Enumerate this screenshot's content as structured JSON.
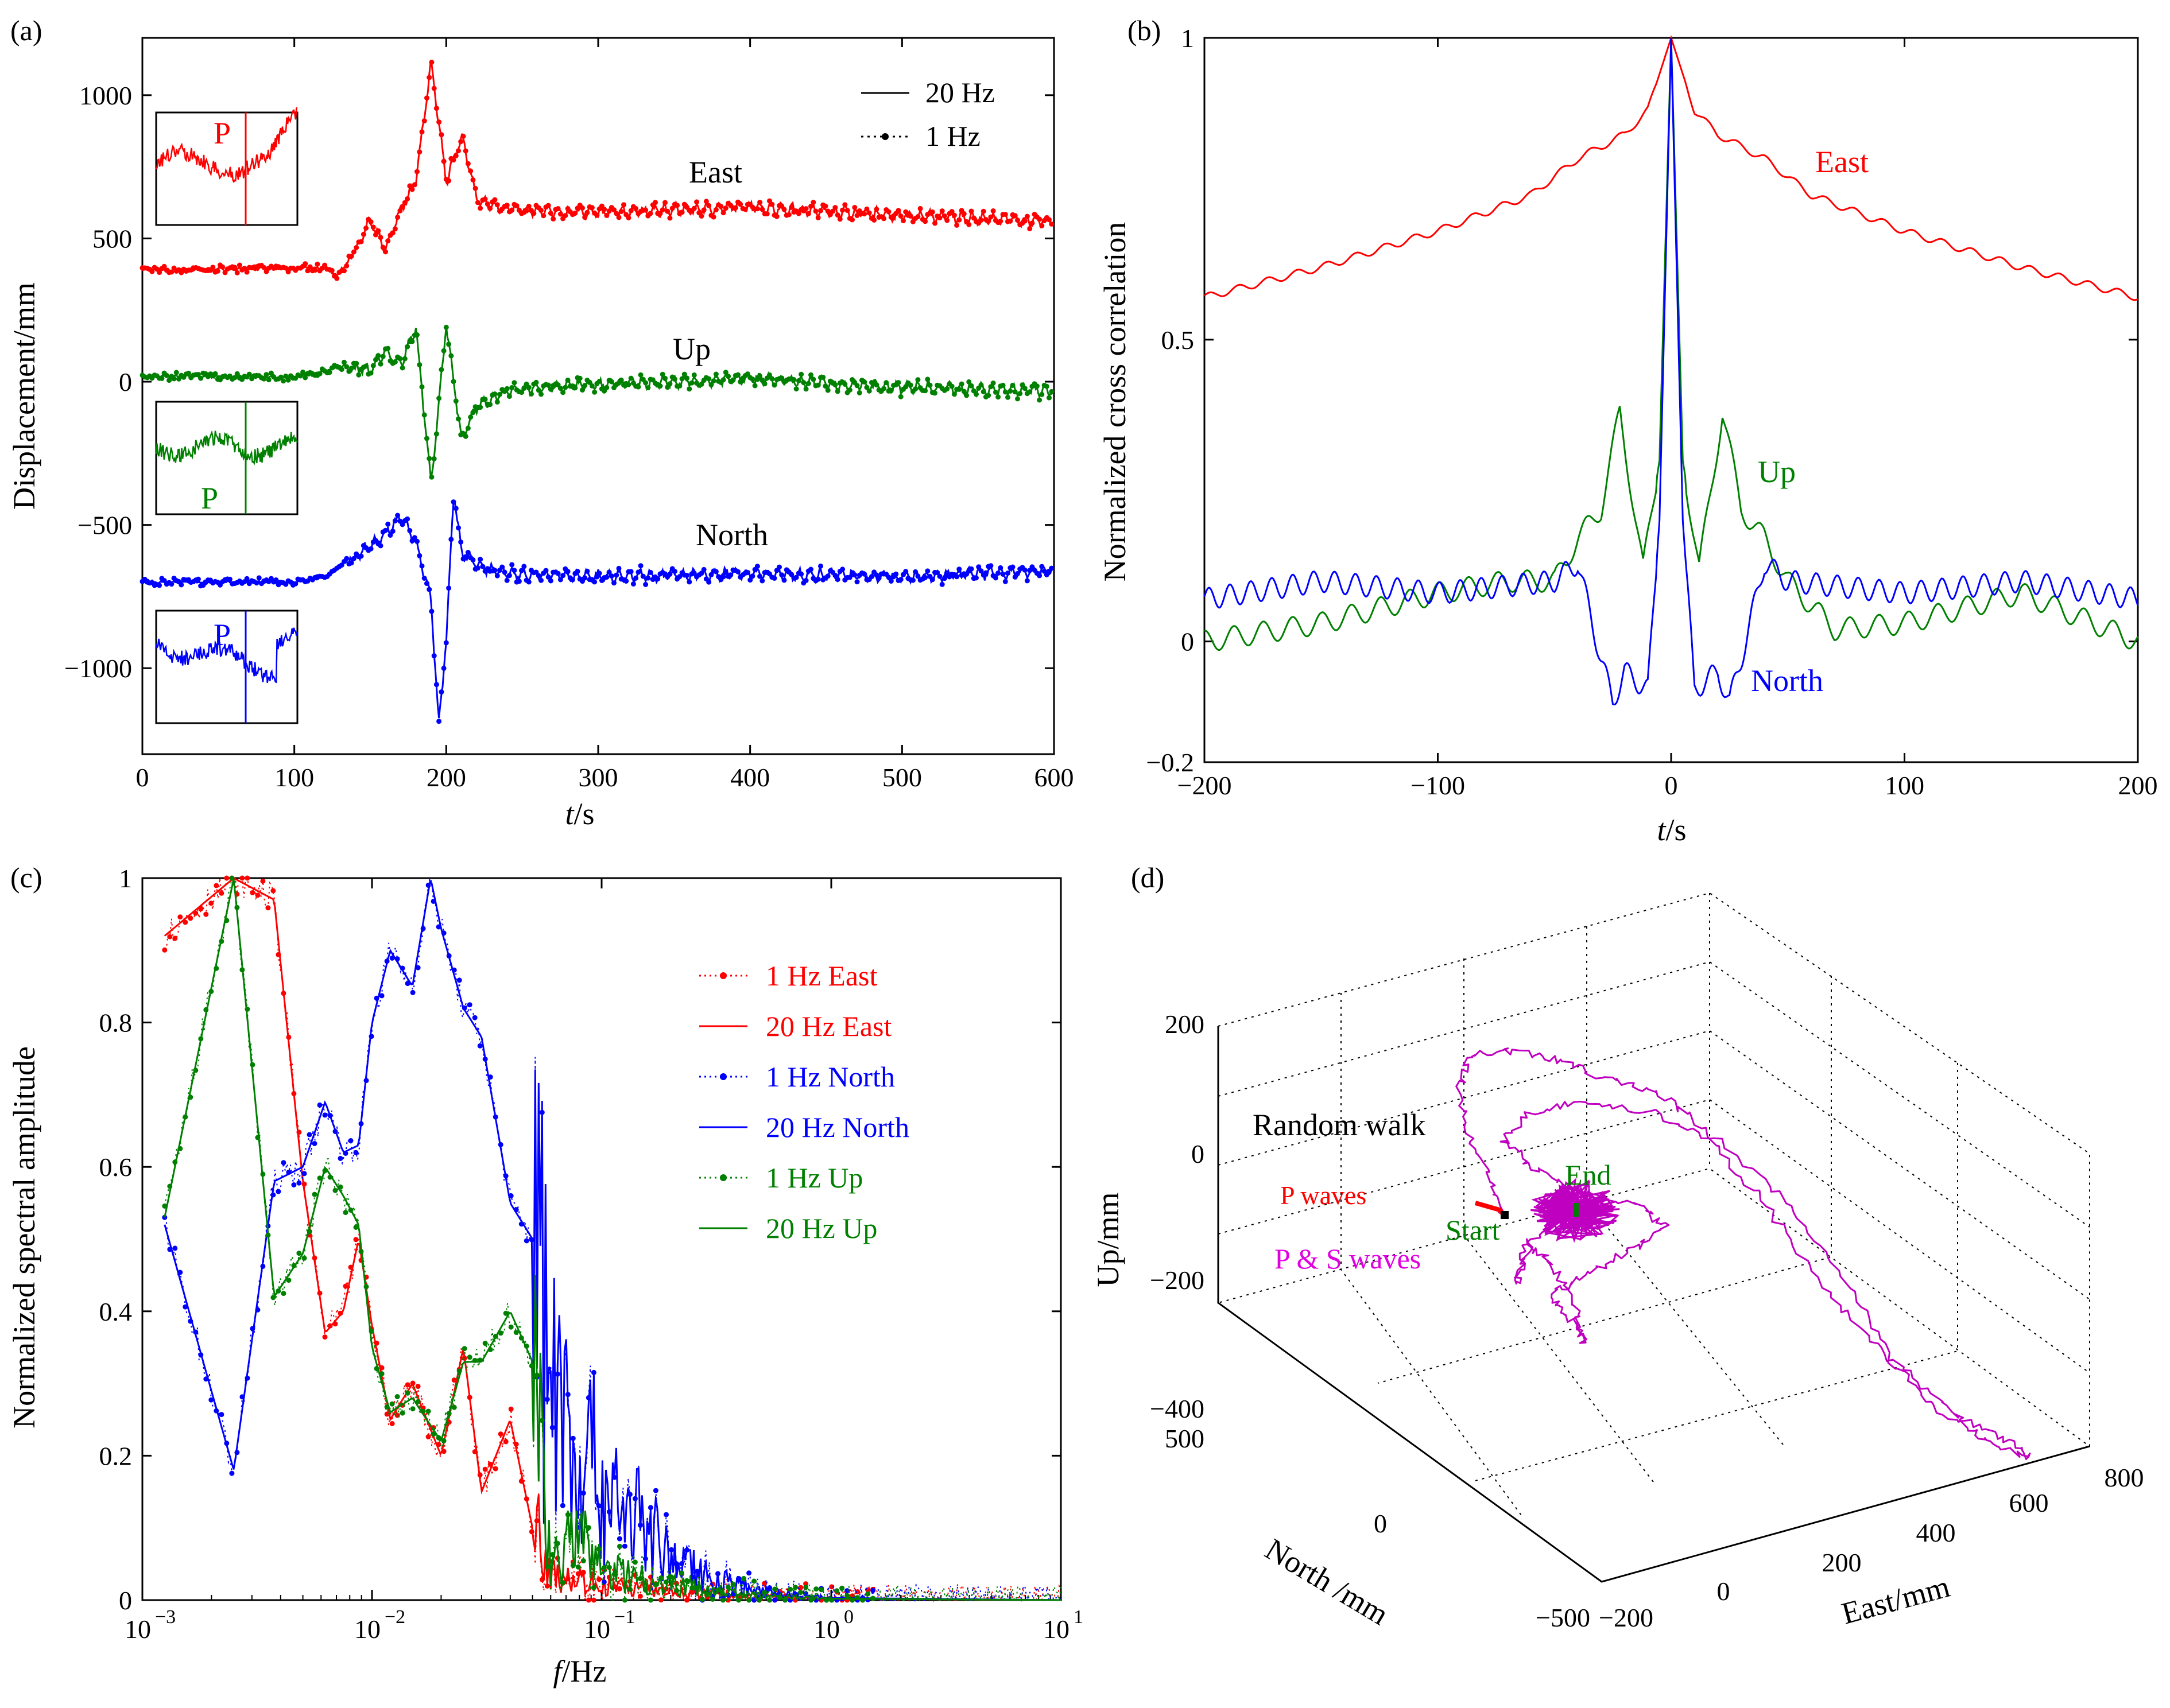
{
  "colors": {
    "east": "#ff0000",
    "up": "#008000",
    "north": "#0000ff",
    "motion": "#c000c0",
    "black": "#000000"
  },
  "chart_data": [
    {
      "panel": "(a)",
      "type": "line",
      "xlabel_italic": "t",
      "xlabel_unit": "/s",
      "ylabel": "Displacement/mm",
      "xlim": [
        0,
        600
      ],
      "ylim": [
        -1300,
        1200
      ],
      "xticks": [
        "0",
        "100",
        "200",
        "300",
        "400",
        "500",
        "600"
      ],
      "yticks": [
        "1000",
        "500",
        "0",
        "−500",
        "−1000"
      ],
      "legend": [
        "20 Hz",
        "1 Hz"
      ],
      "legend_position": "top-right",
      "series_labels": [
        "East",
        "Up",
        "North"
      ],
      "inset_label": "P",
      "series": [
        {
          "name": "East",
          "color": "east",
          "t": [
            0,
            100,
            120,
            128,
            140,
            150,
            160,
            170,
            180,
            190,
            200,
            210,
            220,
            240,
            300,
            400,
            500,
            600
          ],
          "y": [
            390,
            395,
            400,
            370,
            450,
            560,
            460,
            600,
            700,
            1110,
            700,
            860,
            640,
            600,
            590,
            610,
            580,
            560
          ]
        },
        {
          "name": "Up",
          "color": "up",
          "t": [
            0,
            100,
            130,
            150,
            160,
            170,
            180,
            190,
            200,
            210,
            220,
            240,
            300,
            400,
            500,
            600
          ],
          "y": [
            20,
            15,
            50,
            40,
            110,
            60,
            190,
            -360,
            200,
            -200,
            -90,
            -30,
            -10,
            10,
            -20,
            -30
          ]
        },
        {
          "name": "North",
          "color": "north",
          "t": [
            0,
            100,
            120,
            140,
            160,
            170,
            180,
            190,
            195,
            200,
            205,
            210,
            220,
            240,
            300,
            400,
            500,
            600
          ],
          "y": [
            -700,
            -700,
            -680,
            -610,
            -530,
            -470,
            -560,
            -760,
            -1200,
            -900,
            -380,
            -600,
            -640,
            -670,
            -680,
            -670,
            -680,
            -660
          ]
        }
      ]
    },
    {
      "panel": "(b)",
      "type": "line",
      "xlabel_italic": "t",
      "xlabel_unit": "/s",
      "ylabel": "Normalized cross correlation",
      "xlim": [
        -200,
        200
      ],
      "ylim": [
        -0.2,
        1
      ],
      "xticks": [
        "−200",
        "−100",
        "0",
        "100",
        "200"
      ],
      "yticks": [
        "1",
        "0.5",
        "0",
        "−0.2"
      ],
      "series": [
        {
          "name": "East",
          "color": "east",
          "t": [
            -200,
            -150,
            -100,
            -60,
            -40,
            -20,
            -10,
            0,
            10,
            20,
            40,
            60,
            100,
            150,
            200
          ],
          "y": [
            0.57,
            0.62,
            0.68,
            0.74,
            0.8,
            0.84,
            0.88,
            1,
            0.88,
            0.84,
            0.8,
            0.74,
            0.68,
            0.62,
            0.57
          ]
        },
        {
          "name": "Up",
          "color": "up",
          "t": [
            -200,
            -150,
            -100,
            -70,
            -50,
            -40,
            -30,
            -22,
            -12,
            -5,
            0,
            5,
            12,
            22,
            30,
            40,
            50,
            70,
            100,
            150,
            200
          ],
          "y": [
            0,
            0.03,
            0.08,
            0.1,
            0.1,
            0.17,
            0.22,
            0.38,
            0.12,
            0.3,
            1,
            0.3,
            0.12,
            0.38,
            0.22,
            0.17,
            0.1,
            0.02,
            0.03,
            0.08,
            0.0
          ]
        },
        {
          "name": "North",
          "color": "north",
          "t": [
            -200,
            -150,
            -100,
            -50,
            -40,
            -30,
            -25,
            -20,
            -10,
            -5,
            0,
            5,
            10,
            20,
            25,
            30,
            40,
            50,
            100,
            150,
            200
          ],
          "y": [
            0.07,
            0.1,
            0.08,
            0.1,
            0.13,
            -0.03,
            -0.1,
            -0.05,
            -0.08,
            0.2,
            1,
            0.2,
            -0.08,
            -0.05,
            -0.1,
            -0.03,
            0.13,
            0.1,
            0.08,
            0.1,
            0.07
          ]
        }
      ]
    },
    {
      "panel": "(c)",
      "type": "line",
      "xscale": "log",
      "xlabel_italic": "f",
      "xlabel_unit": "/Hz",
      "ylabel": "Normalized spectral amplitude",
      "xlim": [
        0.001,
        10
      ],
      "ylim": [
        0,
        1
      ],
      "xticks": [
        "10",
        "10",
        "10",
        "10",
        "10"
      ],
      "xtick_exponents": [
        "−3",
        "−2",
        "−1",
        "0",
        "1"
      ],
      "yticks": [
        "1",
        "0.8",
        "0.6",
        "0.4",
        "0.2",
        "0"
      ],
      "legend": [
        "1 Hz East",
        "20 Hz East",
        "1 Hz North",
        "20 Hz North",
        "1 Hz Up",
        "20 Hz Up"
      ],
      "series": [
        {
          "name": "East",
          "color": "east",
          "f": [
            0.00125,
            0.0025,
            0.00375,
            0.005,
            0.00625,
            0.0075,
            0.00875,
            0.01,
            0.012,
            0.015,
            0.02,
            0.025,
            0.03,
            0.04,
            0.05,
            0.06,
            0.07,
            0.1,
            0.2,
            0.5,
            1,
            10
          ],
          "y": [
            0.92,
            1.0,
            0.97,
            0.58,
            0.37,
            0.4,
            0.5,
            0.38,
            0.25,
            0.3,
            0.2,
            0.35,
            0.15,
            0.25,
            0.1,
            0.05,
            0.03,
            0.02,
            0.01,
            0.005,
            0.002,
            0.0
          ]
        },
        {
          "name": "North",
          "color": "north",
          "f": [
            0.00125,
            0.0025,
            0.00375,
            0.005,
            0.00625,
            0.0075,
            0.00875,
            0.01,
            0.012,
            0.015,
            0.018,
            0.02,
            0.025,
            0.03,
            0.04,
            0.05,
            0.06,
            0.08,
            0.1,
            0.15,
            0.2,
            0.3,
            0.5,
            1,
            10
          ],
          "y": [
            0.52,
            0.18,
            0.58,
            0.6,
            0.69,
            0.62,
            0.63,
            0.8,
            0.9,
            0.85,
            1.0,
            0.93,
            0.82,
            0.78,
            0.55,
            0.5,
            0.3,
            0.2,
            0.15,
            0.1,
            0.05,
            0.03,
            0.01,
            0.003,
            0.0
          ]
        },
        {
          "name": "Up",
          "color": "up",
          "f": [
            0.00125,
            0.0025,
            0.00375,
            0.005,
            0.00625,
            0.0075,
            0.00875,
            0.01,
            0.012,
            0.015,
            0.02,
            0.025,
            0.03,
            0.04,
            0.05,
            0.06,
            0.08,
            0.1,
            0.2,
            0.5,
            1,
            10
          ],
          "y": [
            0.53,
            1.0,
            0.42,
            0.48,
            0.6,
            0.56,
            0.52,
            0.35,
            0.26,
            0.28,
            0.22,
            0.33,
            0.33,
            0.4,
            0.33,
            0.05,
            0.08,
            0.04,
            0.02,
            0.005,
            0.002,
            0.0
          ]
        }
      ]
    },
    {
      "panel": "(d)",
      "type": "line",
      "projection": "3d",
      "xlabel": "East/mm",
      "ylabel": "North /mm",
      "zlabel": "Up/mm",
      "east_ticks": [
        "−200",
        "0",
        "200",
        "400",
        "600",
        "800"
      ],
      "north_ticks": [
        "500",
        "0",
        "−500"
      ],
      "up_ticks": [
        "200",
        "0",
        "−200",
        "−400"
      ],
      "annotations": {
        "random_walk": "Random walk",
        "p_waves": "P waves",
        "ps_waves": "P & S waves",
        "start": "Start",
        "end": "End"
      }
    }
  ]
}
